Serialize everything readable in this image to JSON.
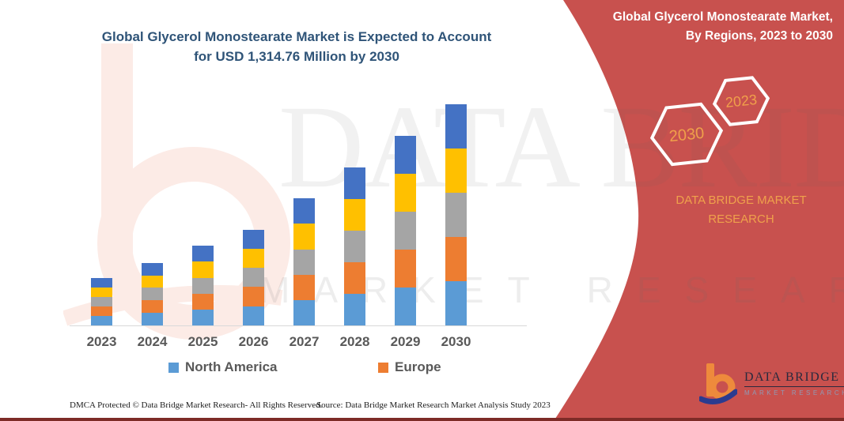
{
  "main_title": {
    "line1": "Global Glycerol Monostearate Market is Expected to Account",
    "line2": "for USD 1,314.76 Million by 2030"
  },
  "chart_data": {
    "type": "bar",
    "stacked": true,
    "title": "Global Glycerol Monostearate Market is Expected to Account for USD 1,314.76 Million by 2030",
    "units": "USD Million",
    "categories": [
      "2023",
      "2024",
      "2025",
      "2026",
      "2027",
      "2028",
      "2029",
      "2030"
    ],
    "series": [
      {
        "name": "North America",
        "color": "#5B9BD5",
        "legend_visible": true,
        "values": [
          56.6,
          74.6,
          94.6,
          114.0,
          151.0,
          187.8,
          225.6,
          262.95
        ]
      },
      {
        "name": "Europe",
        "color": "#ED7D31",
        "legend_visible": true,
        "values": [
          56.6,
          74.6,
          94.6,
          114.0,
          151.0,
          187.8,
          225.6,
          262.95
        ]
      },
      {
        "name": "unlabeled-region-gray",
        "color": "#A5A5A5",
        "legend_visible": false,
        "values": [
          56.6,
          74.6,
          94.6,
          114.0,
          151.0,
          187.8,
          225.6,
          262.95
        ]
      },
      {
        "name": "unlabeled-region-yellow",
        "color": "#FFC000",
        "legend_visible": false,
        "values": [
          56.6,
          74.6,
          94.6,
          114.0,
          151.0,
          187.8,
          225.6,
          262.95
        ]
      },
      {
        "name": "unlabeled-region-darkblue",
        "color": "#4472C4",
        "legend_visible": false,
        "values": [
          56.6,
          74.6,
          94.6,
          114.0,
          151.0,
          187.8,
          225.6,
          262.95
        ]
      }
    ],
    "totals": [
      283,
      373,
      473,
      570,
      755,
      939,
      1128,
      1314.76
    ],
    "ylim": [
      0,
      1400
    ],
    "y_axis_visible": false,
    "gridlines": false,
    "legend_position": "bottom",
    "annotation": "2030 total stated as USD 1,314.76 Million; other values estimated from bar heights"
  },
  "legend": {
    "items": [
      {
        "label": "North America",
        "color": "#5B9BD5"
      },
      {
        "label": "Europe",
        "color": "#ED7D31"
      }
    ]
  },
  "right_panel": {
    "title_line1": "Global Glycerol Monostearate Market,",
    "title_line2": "By Regions, 2023 to 2030",
    "hexagon_large_label": "2030",
    "hexagon_small_label": "2023",
    "brand_line1": "DATA BRIDGE MARKET",
    "brand_line2": "RESEARCH",
    "panel_color": "#C8514E",
    "hexagon_year_color": "#F0A04A"
  },
  "watermark": {
    "line1": "DATA BRIDGE",
    "line2": "MARKET RESEARCH"
  },
  "footer": {
    "dmca": "DMCA Protected © Data Bridge Market Research- All Rights Reserved.",
    "source": "Source: Data Bridge Market Research Market Analysis Study 2023"
  },
  "logo": {
    "name": "DATA BRIDGE",
    "subtitle": "MARKET RESEARCH"
  },
  "colors": {
    "title_text": "#2F5478",
    "axis_label": "#595959",
    "panel_red": "#C8514E",
    "bottom_strip": "#7D2B27",
    "brand_gold": "#EFA14B"
  }
}
